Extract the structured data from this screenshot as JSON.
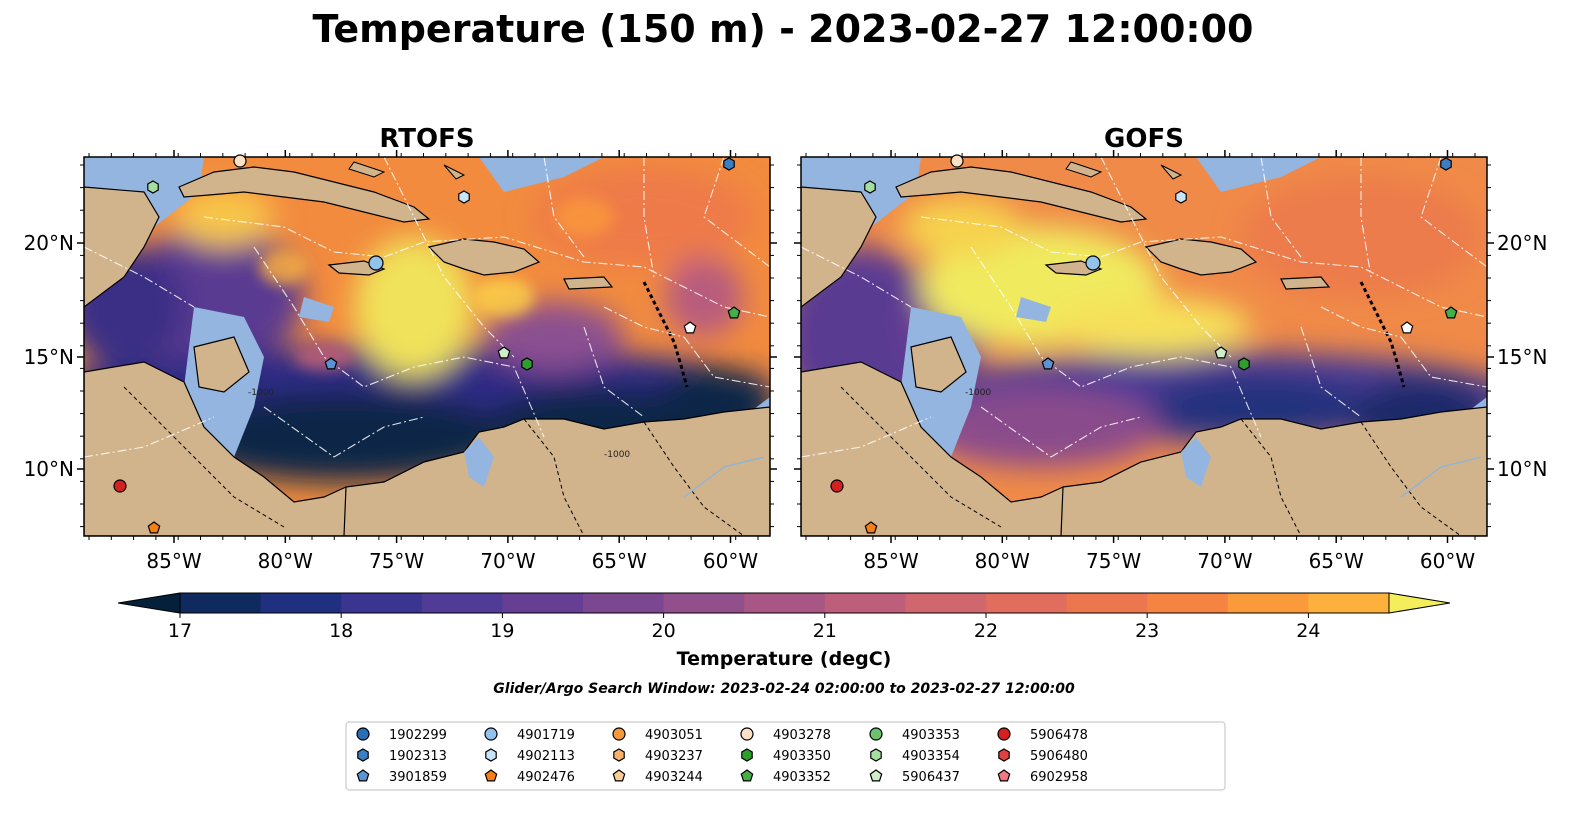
{
  "title": "Temperature (150 m) - 2023-02-27 12:00:00",
  "panels": [
    {
      "id": "rtofs",
      "title": "RTOFS"
    },
    {
      "id": "gofs",
      "title": "GOFS"
    }
  ],
  "axes": {
    "lon_ticks": [
      "85°W",
      "80°W",
      "75°W",
      "70°W",
      "65°W",
      "60°W"
    ],
    "lat_ticks": [
      "20°N",
      "15°N",
      "10°N"
    ]
  },
  "colorbar": {
    "ticks": [
      "17",
      "18",
      "19",
      "20",
      "21",
      "22",
      "23",
      "24"
    ],
    "label": "Temperature (degC)",
    "colors": [
      "#04203a",
      "#0e2a5e",
      "#1f3080",
      "#3a3590",
      "#503c96",
      "#663f94",
      "#7b4790",
      "#914f8c",
      "#a85684",
      "#bd5e7a",
      "#d0666e",
      "#e06d5e",
      "#ec774e",
      "#f58442",
      "#fb9a3a",
      "#fdb13c",
      "#fbd34a",
      "#f3f165"
    ]
  },
  "search_window": "Glider/Argo Search Window: 2023-02-24 02:00:00 to 2023-02-27 12:00:00",
  "contour_labels": [
    "-1000",
    "-1000",
    "-1000"
  ],
  "colors": {
    "land": "#d2b48c",
    "shelf": "#94b5e0",
    "marker_edge": "#000000"
  },
  "legend": [
    {
      "id": "1902299",
      "marker": "circle",
      "color": "#2a6fb4"
    },
    {
      "id": "1902313",
      "marker": "hexagon",
      "color": "#3a7fc4"
    },
    {
      "id": "3901859",
      "marker": "pentagon",
      "color": "#5b93d4"
    },
    {
      "id": "4901719",
      "marker": "circle",
      "color": "#92c3ec"
    },
    {
      "id": "4902113",
      "marker": "hexagon",
      "color": "#c9e3f7"
    },
    {
      "id": "4902476",
      "marker": "pentagon",
      "color": "#f77f14"
    },
    {
      "id": "4903051",
      "marker": "circle",
      "color": "#f59a3c"
    },
    {
      "id": "4903237",
      "marker": "hexagon",
      "color": "#fbb06a"
    },
    {
      "id": "4903244",
      "marker": "pentagon",
      "color": "#fccc98"
    },
    {
      "id": "4903278",
      "marker": "circle",
      "color": "#fde0c5"
    },
    {
      "id": "4903350",
      "marker": "hexagon",
      "color": "#2e9e2e"
    },
    {
      "id": "4903352",
      "marker": "pentagon",
      "color": "#45b045"
    },
    {
      "id": "4903353",
      "marker": "circle",
      "color": "#6cc36c"
    },
    {
      "id": "4903354",
      "marker": "hexagon",
      "color": "#a4dea0"
    },
    {
      "id": "5906437",
      "marker": "pentagon",
      "color": "#cdeec8"
    },
    {
      "id": "5906478",
      "marker": "circle",
      "color": "#d42020"
    },
    {
      "id": "5906480",
      "marker": "hexagon",
      "color": "#e24040"
    },
    {
      "id": "6902958",
      "marker": "pentagon",
      "color": "#f07a80"
    }
  ]
}
